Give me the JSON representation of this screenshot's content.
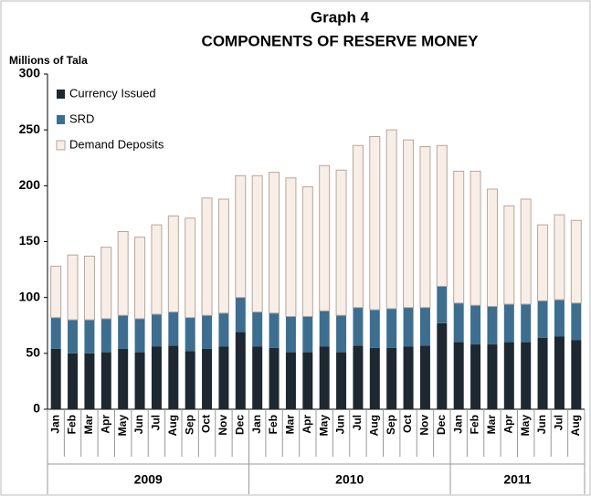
{
  "chart_data": {
    "type": "stacked_bar",
    "title": "Graph 4",
    "subtitle": "COMPONENTS OF RESERVE MONEY",
    "y_label": "Millions of Tala",
    "categories": [
      "Jan",
      "Feb",
      "Mar",
      "Apr",
      "May",
      "Jun",
      "Jul",
      "Aug",
      "Sep",
      "Oct",
      "Nov",
      "Dec",
      "Jan",
      "Feb",
      "Mar",
      "Apr",
      "May",
      "Jun",
      "Jul",
      "Aug",
      "Sep",
      "Oct",
      "Nov",
      "Dec",
      "Jan",
      "Feb",
      "Mar",
      "Apr",
      "May",
      "Jun",
      "Jul",
      "Aug"
    ],
    "groups": [
      {
        "label": "2009",
        "count": 12
      },
      {
        "label": "2010",
        "count": 12
      },
      {
        "label": "2011",
        "count": 8
      }
    ],
    "series": [
      {
        "name": "Currency Issued",
        "color": "#1e2830",
        "values": [
          54,
          50,
          50,
          51,
          54,
          51,
          56,
          57,
          52,
          54,
          56,
          69,
          56,
          55,
          51,
          51,
          56,
          51,
          57,
          55,
          55,
          56,
          57,
          77,
          60,
          58,
          58,
          60,
          60,
          64,
          65,
          62
        ]
      },
      {
        "name": "SRD",
        "color": "#3d6e90",
        "values": [
          28,
          30,
          30,
          30,
          30,
          30,
          29,
          30,
          30,
          30,
          30,
          31,
          31,
          31,
          32,
          32,
          32,
          33,
          34,
          34,
          35,
          35,
          34,
          33,
          35,
          35,
          34,
          34,
          34,
          33,
          33,
          33
        ]
      },
      {
        "name": "Demand Deposits",
        "color": "#f7eee8",
        "values": [
          46,
          58,
          57,
          64,
          75,
          73,
          80,
          86,
          89,
          105,
          102,
          109,
          122,
          126,
          124,
          116,
          130,
          130,
          145,
          155,
          160,
          150,
          144,
          126,
          118,
          120,
          105,
          88,
          94,
          68,
          76,
          74
        ]
      }
    ],
    "ylim": [
      0,
      300
    ],
    "yticks": [
      0,
      50,
      100,
      150,
      200,
      250,
      300
    ],
    "grid": false,
    "legend": "top-left"
  }
}
